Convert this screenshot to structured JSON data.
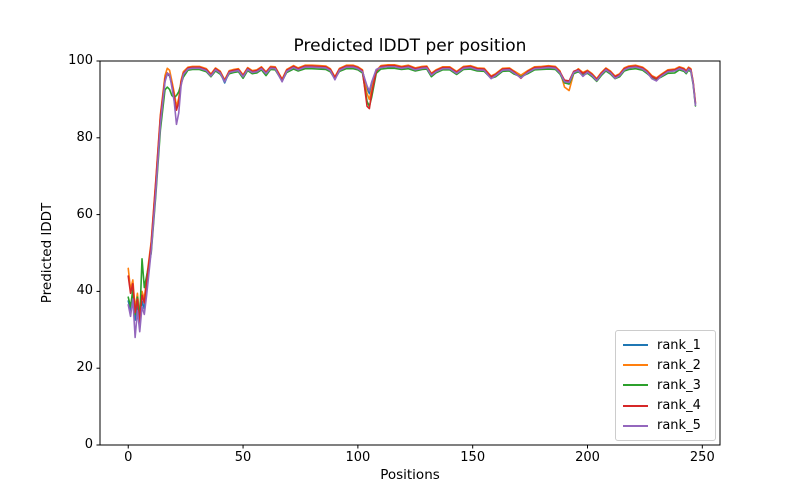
{
  "chart_data": {
    "type": "line",
    "title": "Predicted lDDT per position",
    "xlabel": "Positions",
    "ylabel": "Predicted lDDT",
    "xlim": [
      -12.3,
      257.7
    ],
    "ylim": [
      0,
      100
    ],
    "x_ticks": [
      0,
      50,
      100,
      150,
      200,
      250
    ],
    "y_ticks": [
      0,
      20,
      40,
      60,
      80,
      100
    ],
    "grid": false,
    "legend_position": "lower right",
    "axis_color": "#000000",
    "x": [
      0,
      1,
      2,
      3,
      4,
      5,
      6,
      7,
      8,
      10,
      12,
      14,
      16,
      17,
      18,
      19,
      20,
      21,
      22,
      23,
      24,
      26,
      28,
      31,
      34,
      36,
      38,
      40,
      42,
      44,
      46,
      48,
      50,
      52,
      54,
      56,
      58,
      60,
      62,
      64,
      67,
      69,
      72,
      74,
      77,
      80,
      83,
      86,
      88,
      90,
      92,
      95,
      98,
      100,
      102,
      104,
      105,
      106,
      108,
      110,
      113,
      116,
      119,
      122,
      125,
      128,
      130,
      132,
      134,
      137,
      140,
      143,
      146,
      149,
      152,
      155,
      158,
      160,
      163,
      166,
      168,
      171,
      174,
      177,
      180,
      183,
      186,
      188,
      190,
      192,
      194,
      196,
      198,
      200,
      202,
      204,
      206,
      208,
      210,
      212,
      214,
      216,
      218,
      221,
      224,
      226,
      228,
      230,
      232,
      235,
      238,
      240,
      242,
      243,
      244,
      245,
      246,
      247
    ],
    "series": [
      {
        "name": "rank_1",
        "color": "#1f77b4",
        "values": [
          37.5,
          35.0,
          39.0,
          32.5,
          37.0,
          31.0,
          37.5,
          35.5,
          40.5,
          51.0,
          67.0,
          84.5,
          94.8,
          96.6,
          96.1,
          93.8,
          91.2,
          87.6,
          89.8,
          94.6,
          96.9,
          98.1,
          98.3,
          98.3,
          97.7,
          96.3,
          97.9,
          97.1,
          94.3,
          97.2,
          97.5,
          97.7,
          96.1,
          98.0,
          97.2,
          97.4,
          98.2,
          96.9,
          98.3,
          98.2,
          95.0,
          97.5,
          98.5,
          97.9,
          98.6,
          98.6,
          98.5,
          98.4,
          97.7,
          95.6,
          97.8,
          98.6,
          98.6,
          98.2,
          97.4,
          93.0,
          91.5,
          94.0,
          97.7,
          98.5,
          98.7,
          98.7,
          98.3,
          98.6,
          97.9,
          98.3,
          98.4,
          96.5,
          97.4,
          98.2,
          98.2,
          97.0,
          98.3,
          98.5,
          97.9,
          97.8,
          95.7,
          96.4,
          97.8,
          97.9,
          97.1,
          96.0,
          97.2,
          98.2,
          98.3,
          98.5,
          98.3,
          97.1,
          94.9,
          94.7,
          97.2,
          97.7,
          96.7,
          97.3,
          96.4,
          95.1,
          96.7,
          97.9,
          97.1,
          95.8,
          96.4,
          97.9,
          98.4,
          98.6,
          98.1,
          97.2,
          95.9,
          95.3,
          96.2,
          97.4,
          97.6,
          98.2,
          97.8,
          97.2,
          98.1,
          97.7,
          94.4,
          88.9
        ]
      },
      {
        "name": "rank_2",
        "color": "#ff7f0e",
        "values": [
          46.0,
          40.5,
          43.0,
          35.5,
          39.5,
          33.5,
          40.0,
          38.0,
          43.5,
          53.0,
          69.0,
          86.0,
          96.2,
          98.1,
          97.6,
          94.8,
          91.8,
          88.2,
          90.3,
          95.0,
          97.2,
          98.4,
          98.6,
          98.6,
          98.0,
          96.6,
          98.2,
          97.4,
          95.1,
          97.5,
          97.8,
          98.0,
          96.4,
          98.3,
          97.5,
          97.7,
          98.5,
          97.2,
          98.6,
          98.5,
          95.3,
          97.8,
          98.8,
          98.2,
          98.9,
          98.9,
          98.8,
          98.7,
          98.0,
          95.9,
          98.1,
          98.9,
          98.9,
          98.5,
          97.7,
          91.5,
          90.0,
          92.5,
          97.5,
          98.8,
          99.0,
          99.0,
          98.6,
          98.9,
          98.2,
          98.6,
          98.7,
          96.8,
          97.7,
          98.5,
          98.5,
          97.3,
          98.6,
          98.8,
          98.2,
          98.1,
          96.1,
          96.7,
          98.1,
          98.2,
          97.4,
          96.3,
          97.5,
          98.5,
          98.6,
          98.8,
          98.6,
          97.4,
          93.2,
          92.3,
          96.8,
          98.0,
          97.0,
          97.6,
          96.7,
          95.4,
          97.0,
          98.2,
          97.4,
          96.1,
          96.7,
          98.2,
          98.7,
          98.9,
          98.4,
          97.5,
          96.2,
          95.6,
          96.5,
          97.7,
          97.9,
          98.5,
          98.1,
          97.5,
          98.4,
          98.0,
          94.7,
          89.3
        ]
      },
      {
        "name": "rank_3",
        "color": "#2ca02c",
        "values": [
          38.5,
          36.0,
          40.5,
          34.0,
          38.5,
          32.5,
          48.5,
          41.0,
          44.0,
          50.0,
          65.0,
          82.0,
          92.5,
          93.2,
          92.6,
          91.0,
          90.5,
          91.0,
          92.0,
          94.0,
          95.8,
          97.6,
          97.8,
          97.8,
          97.2,
          95.9,
          97.4,
          96.6,
          94.8,
          96.7,
          97.0,
          97.2,
          95.5,
          97.5,
          96.7,
          96.9,
          97.7,
          96.2,
          97.8,
          97.7,
          94.8,
          97.0,
          97.9,
          97.4,
          98.0,
          98.0,
          97.9,
          97.8,
          97.2,
          95.4,
          97.3,
          98.0,
          98.0,
          97.7,
          96.9,
          89.5,
          88.2,
          90.5,
          96.8,
          97.9,
          98.1,
          98.1,
          97.8,
          98.0,
          97.4,
          97.8,
          97.9,
          95.9,
          96.9,
          97.7,
          97.7,
          96.5,
          97.8,
          97.9,
          97.4,
          97.3,
          95.5,
          95.9,
          97.3,
          97.4,
          96.6,
          95.9,
          96.7,
          97.7,
          97.8,
          97.9,
          97.8,
          96.6,
          94.3,
          94.0,
          96.7,
          97.2,
          96.3,
          96.8,
          95.9,
          94.7,
          96.2,
          97.4,
          96.6,
          95.4,
          95.9,
          97.4,
          97.8,
          98.0,
          97.6,
          96.7,
          95.7,
          95.2,
          95.8,
          96.8,
          96.9,
          97.7,
          97.3,
          96.7,
          97.6,
          97.2,
          93.9,
          88.3
        ]
      },
      {
        "name": "rank_4",
        "color": "#d62728",
        "values": [
          44.0,
          39.5,
          42.0,
          34.5,
          38.0,
          32.0,
          39.0,
          37.0,
          42.5,
          52.5,
          68.5,
          85.5,
          95.3,
          96.9,
          96.2,
          93.9,
          90.8,
          87.2,
          89.3,
          94.4,
          96.8,
          98.2,
          98.4,
          98.4,
          97.8,
          96.4,
          98.0,
          97.2,
          94.9,
          97.3,
          97.6,
          97.8,
          96.2,
          98.1,
          97.3,
          97.5,
          98.3,
          97.0,
          98.4,
          98.3,
          95.1,
          97.6,
          98.6,
          98.0,
          98.7,
          98.7,
          98.6,
          98.5,
          97.8,
          95.7,
          97.9,
          98.7,
          98.7,
          98.3,
          97.5,
          88.2,
          87.6,
          91.5,
          97.3,
          98.6,
          98.8,
          98.8,
          98.4,
          98.7,
          98.0,
          98.4,
          98.5,
          96.6,
          97.5,
          98.3,
          98.3,
          97.1,
          98.4,
          98.6,
          98.0,
          97.9,
          95.9,
          96.5,
          97.9,
          98.0,
          97.2,
          95.5,
          97.3,
          98.3,
          98.4,
          98.6,
          98.4,
          97.2,
          95.0,
          94.8,
          97.3,
          97.8,
          96.8,
          97.4,
          96.5,
          95.2,
          96.8,
          98.0,
          97.2,
          95.9,
          96.5,
          98.0,
          98.5,
          98.7,
          98.2,
          97.3,
          96.0,
          95.4,
          96.3,
          97.5,
          97.7,
          98.3,
          97.9,
          97.3,
          98.2,
          97.8,
          94.5,
          89.0
        ]
      },
      {
        "name": "rank_5",
        "color": "#9467bd",
        "values": [
          36.5,
          33.5,
          38.0,
          28.0,
          35.0,
          29.5,
          36.0,
          34.0,
          39.0,
          50.5,
          66.0,
          83.5,
          94.6,
          96.8,
          96.5,
          93.2,
          89.5,
          83.5,
          86.5,
          93.5,
          96.5,
          97.9,
          98.1,
          98.1,
          97.5,
          96.1,
          97.7,
          96.9,
          94.6,
          97.0,
          97.3,
          97.5,
          95.9,
          97.8,
          97.0,
          97.2,
          98.0,
          96.7,
          98.1,
          98.0,
          94.6,
          97.3,
          98.3,
          97.7,
          98.4,
          98.4,
          98.3,
          98.2,
          97.5,
          95.1,
          97.6,
          98.4,
          98.4,
          98.0,
          97.2,
          93.5,
          92.2,
          94.5,
          97.8,
          98.3,
          98.5,
          98.5,
          98.1,
          98.4,
          97.7,
          98.1,
          98.2,
          96.3,
          97.2,
          98.0,
          98.0,
          96.8,
          98.1,
          98.3,
          97.7,
          97.6,
          95.4,
          96.2,
          97.6,
          97.7,
          96.9,
          95.6,
          97.0,
          98.0,
          98.1,
          98.3,
          98.1,
          96.9,
          94.6,
          94.4,
          97.0,
          97.5,
          96.0,
          97.1,
          96.2,
          94.9,
          96.5,
          97.7,
          96.9,
          95.5,
          96.2,
          97.7,
          98.2,
          98.4,
          97.9,
          97.0,
          95.4,
          94.8,
          96.0,
          97.2,
          97.4,
          98.0,
          97.6,
          97.0,
          97.9,
          97.5,
          94.2,
          88.5
        ]
      }
    ]
  }
}
